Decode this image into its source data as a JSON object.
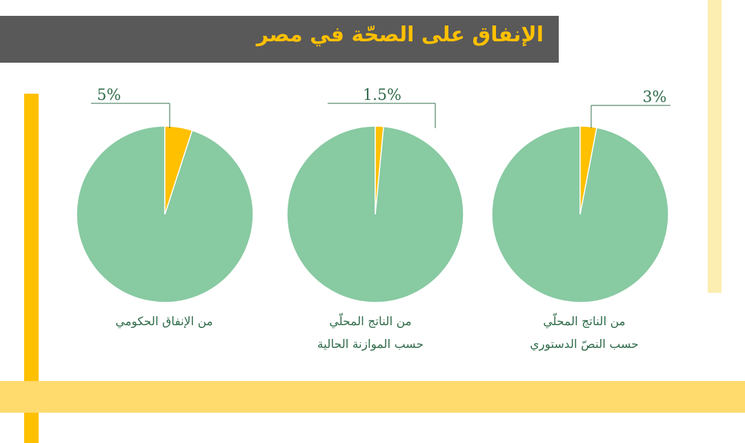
{
  "title": "الإنفاق على الصحّة في مصر",
  "colors": {
    "slice": "#ffc000",
    "remainder": "#88caa2",
    "leader": "#2f6b4a",
    "title_bg": "#595959",
    "title_text": "#ffc000"
  },
  "chart_data": [
    {
      "type": "pie",
      "value_label": "5%",
      "values": [
        5,
        95
      ],
      "caption": [
        "من الإنفاق الحكومي"
      ]
    },
    {
      "type": "pie",
      "value_label": "1.5%",
      "values": [
        1.5,
        98.5
      ],
      "caption": [
        "من الناتج المحلّي",
        "حسب الموازنة الحالية"
      ]
    },
    {
      "type": "pie",
      "value_label": "3%",
      "values": [
        3,
        97
      ],
      "caption": [
        "من الناتج المحلّي",
        "حسب النصّ الدستوري"
      ]
    }
  ]
}
